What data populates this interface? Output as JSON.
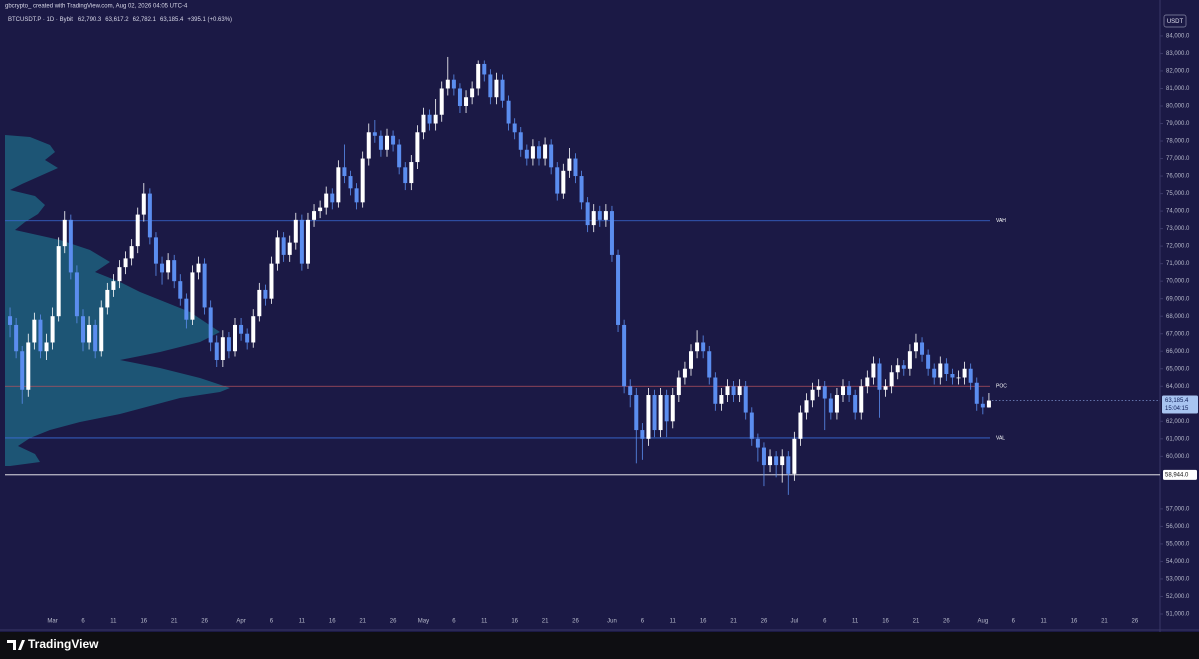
{
  "chart_data": {
    "type": "candlestick",
    "credit": "gbcrypto_ created with TradingView.com, Aug 02, 2026 04:05 UTC-4",
    "header": {
      "symbol": "BTCUSDT.P · 1D · Bybit",
      "open": "62,790.3",
      "high": "63,617.2",
      "low": "62,782.1",
      "close": "63,185.4",
      "change": "+395.1 (+0.63%)"
    },
    "currency": "USDT",
    "brand": "TradingView",
    "up_color": "#ffffff",
    "down_color": "#5b8def",
    "categories": [
      null,
      null,
      null,
      null,
      null,
      null,
      null,
      "Mar",
      null,
      null,
      null,
      null,
      "6",
      null,
      null,
      null,
      null,
      "11",
      null,
      null,
      null,
      null,
      "16",
      null,
      null,
      null,
      null,
      "21",
      null,
      null,
      null,
      null,
      "26",
      null,
      null,
      null,
      null,
      null,
      "Apr",
      null,
      null,
      null,
      null,
      "6",
      null,
      null,
      null,
      null,
      "11",
      null,
      null,
      null,
      null,
      "16",
      null,
      null,
      null,
      null,
      "21",
      null,
      null,
      null,
      null,
      "26",
      null,
      null,
      null,
      null,
      "May",
      null,
      null,
      null,
      null,
      "6",
      null,
      null,
      null,
      null,
      "11",
      null,
      null,
      null,
      null,
      "16",
      null,
      null,
      null,
      null,
      "21",
      null,
      null,
      null,
      null,
      "26",
      null,
      null,
      null,
      null,
      null,
      "Jun",
      null,
      null,
      null,
      null,
      "6",
      null,
      null,
      null,
      null,
      "11",
      null,
      null,
      null,
      null,
      "16",
      null,
      null,
      null,
      null,
      "21",
      null,
      null,
      null,
      null,
      "26",
      null,
      null,
      null,
      null,
      "Jul",
      null,
      null,
      null,
      null,
      "6",
      null,
      null,
      null,
      null,
      "11",
      null,
      null,
      null,
      null,
      "16",
      null,
      null,
      null,
      null,
      "21",
      null,
      null,
      null,
      null,
      "26",
      null,
      null,
      null,
      null,
      null,
      "Aug",
      null,
      null,
      null,
      null,
      "6",
      null,
      null,
      null,
      null,
      "11",
      null,
      null,
      null,
      null,
      "16",
      null,
      null,
      null,
      null,
      "21",
      null,
      null,
      null,
      null,
      "26",
      null,
      null,
      null
    ],
    "open": [
      68000,
      67500,
      66000,
      63800,
      66500,
      67800,
      66000,
      66500,
      68000,
      72000,
      73500,
      70500,
      68000,
      66500,
      67500,
      66000,
      68500,
      69500,
      70000,
      70800,
      71300,
      72000,
      73800,
      75000,
      72500,
      71000,
      70500,
      71200,
      70000,
      69000,
      67800,
      70500,
      71000,
      68500,
      66500,
      65500,
      66800,
      66000,
      67500,
      67000,
      66500,
      68000,
      69500,
      69000,
      71000,
      72500,
      71500,
      72200,
      73500,
      71000,
      73500,
      74000,
      74200,
      75000,
      74500,
      76500,
      76000,
      75300,
      74500,
      77000,
      78500,
      78300,
      77500,
      78300,
      77800,
      76500,
      75600,
      76800,
      78500,
      79500,
      79000,
      79500,
      81000,
      81500,
      81000,
      80000,
      80500,
      81000,
      82400,
      81800,
      80500,
      81500,
      80300,
      79000,
      78500,
      77500,
      77000,
      77700,
      77000,
      77800,
      76500,
      75000,
      76300,
      77000,
      76000,
      74500,
      73200,
      74000,
      73500,
      74000,
      71500,
      67500,
      64000,
      63500,
      61500,
      61000,
      63500,
      61500,
      63500,
      62000,
      63500,
      64500,
      65000,
      66000,
      66500,
      66000,
      64500,
      63000,
      63500,
      64000,
      63500,
      64000,
      62500,
      61000,
      60500,
      59500,
      60000,
      59500,
      60000,
      59000,
      61000,
      62500,
      63200,
      63800,
      64000,
      63300,
      62500,
      63500,
      64000,
      63500,
      62500,
      64000,
      64500,
      65300,
      63800,
      64000,
      64800,
      65200,
      65000,
      66000,
      66500,
      65800,
      65000,
      64500,
      65300,
      64700,
      64500,
      64500,
      65000,
      64200,
      63000,
      62790.3,
      null,
      null,
      null,
      null,
      null,
      null,
      null,
      null,
      null,
      null,
      null,
      null,
      null,
      null,
      null,
      null,
      null,
      null,
      null,
      null,
      null,
      null,
      null,
      null,
      null,
      null,
      null
    ],
    "high": [
      68500,
      67900,
      66300,
      67000,
      68200,
      68100,
      67000,
      68500,
      72500,
      74000,
      73800,
      70900,
      68400,
      68000,
      67800,
      68900,
      69900,
      70400,
      71200,
      71700,
      72400,
      74200,
      75600,
      75300,
      72800,
      71400,
      71600,
      71500,
      70400,
      69300,
      70900,
      71400,
      71300,
      68900,
      66900,
      67200,
      67100,
      67900,
      67900,
      67300,
      68400,
      69900,
      69800,
      71400,
      72900,
      72800,
      72600,
      73900,
      73800,
      73900,
      74400,
      74600,
      75400,
      75300,
      76900,
      77800,
      76300,
      75600,
      77400,
      79000,
      79200,
      78600,
      78700,
      78600,
      78100,
      76800,
      77200,
      78900,
      79900,
      79800,
      80400,
      81400,
      82800,
      81800,
      81300,
      80900,
      81400,
      82600,
      82600,
      82100,
      81900,
      81800,
      80600,
      79300,
      78800,
      77800,
      78100,
      78000,
      78200,
      78100,
      76800,
      76700,
      77600,
      77300,
      76300,
      74800,
      74400,
      74300,
      74400,
      74300,
      71800,
      67800,
      64400,
      63900,
      61900,
      63900,
      63800,
      63900,
      63800,
      63900,
      64900,
      65400,
      66400,
      67200,
      66900,
      66300,
      64800,
      63900,
      64400,
      64300,
      64400,
      64300,
      62800,
      61300,
      60800,
      60400,
      60300,
      60400,
      60300,
      61400,
      62900,
      63600,
      64200,
      64400,
      64300,
      63600,
      63900,
      64400,
      64300,
      63800,
      64400,
      64900,
      65700,
      65600,
      64400,
      65200,
      65600,
      65500,
      66400,
      67000,
      66800,
      66100,
      65300,
      65700,
      65600,
      65000,
      64900,
      65400,
      65300,
      64500,
      63400,
      63617.2,
      null,
      null,
      null,
      null,
      null,
      null,
      null,
      null,
      null,
      null,
      null,
      null,
      null,
      null,
      null,
      null,
      null,
      null,
      null,
      null,
      null,
      null,
      null,
      null,
      null,
      null,
      null
    ],
    "low": [
      66800,
      65600,
      63000,
      63400,
      66100,
      65600,
      65500,
      66100,
      67700,
      71600,
      70100,
      67600,
      66000,
      66100,
      65600,
      65700,
      68100,
      69100,
      69600,
      70400,
      70900,
      71600,
      73400,
      72100,
      70300,
      69800,
      70100,
      69600,
      68600,
      67300,
      67500,
      70100,
      68100,
      66000,
      65100,
      65100,
      65600,
      65700,
      66600,
      66100,
      66200,
      67700,
      68600,
      68700,
      70600,
      71100,
      71100,
      71800,
      70600,
      70700,
      73100,
      73600,
      73800,
      74100,
      74200,
      75600,
      74900,
      74100,
      74200,
      76600,
      77900,
      77100,
      77100,
      77400,
      76100,
      75200,
      75200,
      76400,
      78100,
      78600,
      78600,
      79100,
      80600,
      80600,
      79600,
      79600,
      80100,
      80600,
      81400,
      80100,
      80100,
      79900,
      78600,
      78100,
      77100,
      76600,
      76600,
      76600,
      76600,
      76100,
      74600,
      74700,
      75900,
      75600,
      74100,
      72800,
      72800,
      73100,
      73100,
      71100,
      67100,
      63600,
      62800,
      59600,
      59800,
      60600,
      61100,
      61100,
      61100,
      61600,
      63100,
      64100,
      64600,
      65600,
      65600,
      64100,
      62600,
      62600,
      63100,
      63100,
      63100,
      62100,
      60600,
      59700,
      58300,
      59100,
      58800,
      58500,
      57800,
      58600,
      60600,
      62100,
      62800,
      63400,
      61500,
      62100,
      62100,
      63100,
      63100,
      62100,
      62100,
      63600,
      64100,
      62200,
      63400,
      63600,
      64400,
      64600,
      64600,
      65600,
      65400,
      64600,
      64100,
      64100,
      64300,
      64100,
      64100,
      64100,
      63800,
      62600,
      62400,
      62782.1,
      null,
      null,
      null,
      null,
      null,
      null,
      null,
      null,
      null,
      null,
      null,
      null,
      null,
      null,
      null,
      null,
      null,
      null,
      null,
      null,
      null,
      null,
      null,
      null,
      null,
      null,
      null
    ],
    "close": [
      67500,
      66000,
      63800,
      66500,
      67800,
      66000,
      66500,
      68000,
      72000,
      73500,
      70500,
      68000,
      66500,
      67500,
      66000,
      68500,
      69500,
      70000,
      70800,
      71300,
      72000,
      73800,
      75000,
      72500,
      71000,
      70500,
      71200,
      70000,
      69000,
      67800,
      70500,
      71000,
      68500,
      66500,
      65500,
      66800,
      66000,
      67500,
      67000,
      66500,
      68000,
      69500,
      69000,
      71000,
      72500,
      71500,
      72200,
      73500,
      71000,
      73500,
      74000,
      74200,
      75000,
      74500,
      76500,
      76000,
      75300,
      74500,
      77000,
      78500,
      78300,
      77500,
      78300,
      77800,
      76500,
      75600,
      76800,
      78500,
      79500,
      79000,
      79500,
      81000,
      81500,
      81000,
      80000,
      80500,
      81000,
      82400,
      81800,
      80500,
      81500,
      80300,
      79000,
      78500,
      77500,
      77000,
      77700,
      77000,
      77800,
      76500,
      75000,
      76300,
      77000,
      76000,
      74500,
      73200,
      74000,
      73500,
      74000,
      71500,
      67500,
      64000,
      63500,
      61500,
      61000,
      63500,
      61500,
      63500,
      62000,
      63500,
      64500,
      65000,
      66000,
      66500,
      66000,
      64500,
      63000,
      63500,
      64000,
      63500,
      64000,
      62500,
      61000,
      60500,
      59500,
      60000,
      59500,
      60000,
      59000,
      61000,
      62500,
      63200,
      63800,
      64000,
      63300,
      62500,
      63500,
      64000,
      63500,
      62500,
      64000,
      64500,
      65300,
      63800,
      64000,
      64800,
      65200,
      65000,
      66000,
      66500,
      65800,
      65000,
      64500,
      65300,
      64700,
      64500,
      64500,
      65000,
      64200,
      63000,
      62790.3,
      63185.4,
      null,
      null,
      null,
      null,
      null,
      null,
      null,
      null,
      null,
      null,
      null,
      null,
      null,
      null,
      null,
      null,
      null,
      null,
      null,
      null,
      null,
      null,
      null,
      null,
      null,
      null,
      null
    ],
    "last_price": {
      "label": "63,185.4",
      "countdown": "15:04:15"
    },
    "levels": [
      {
        "label": "VAH",
        "value": 73450,
        "color": "#3a6bd8"
      },
      {
        "label": "POC",
        "value": 64000,
        "color": "#b0505e"
      },
      {
        "label": "VAL",
        "value": 61050,
        "color": "#3a6bd8"
      }
    ],
    "price_line": {
      "value": 58944,
      "label": "58,944.0",
      "color": "#ffffff"
    },
    "ylim": [
      50200,
      85480
    ],
    "yticks": [
      {
        "value": 84000,
        "label": "84,000.0"
      },
      {
        "value": 83000,
        "label": "83,000.0"
      },
      {
        "value": 82000,
        "label": "82,000.0"
      },
      {
        "value": 81000,
        "label": "81,000.0"
      },
      {
        "value": 80000,
        "label": "80,000.0"
      },
      {
        "value": 79000,
        "label": "79,000.0"
      },
      {
        "value": 78000,
        "label": "78,000.0"
      },
      {
        "value": 77000,
        "label": "77,000.0"
      },
      {
        "value": 76000,
        "label": "76,000.0"
      },
      {
        "value": 75000,
        "label": "75,000.0"
      },
      {
        "value": 74000,
        "label": "74,000.0"
      },
      {
        "value": 73000,
        "label": "73,000.0"
      },
      {
        "value": 72000,
        "label": "72,000.0"
      },
      {
        "value": 71000,
        "label": "71,000.0"
      },
      {
        "value": 70000,
        "label": "70,000.0"
      },
      {
        "value": 69000,
        "label": "69,000.0"
      },
      {
        "value": 68000,
        "label": "68,000.0"
      },
      {
        "value": 67000,
        "label": "67,000.0"
      },
      {
        "value": 66000,
        "label": "66,000.0"
      },
      {
        "value": 65000,
        "label": "65,000.0"
      },
      {
        "value": 64000,
        "label": "64,000.0"
      },
      {
        "value": 62000,
        "label": "62,000.0"
      },
      {
        "value": 61000,
        "label": "61,000.0"
      },
      {
        "value": 60000,
        "label": "60,000.0"
      },
      {
        "value": 57000,
        "label": "57,000.0"
      },
      {
        "value": 56000,
        "label": "56,000.0"
      },
      {
        "value": 55000,
        "label": "55,000.0"
      },
      {
        "value": 54000,
        "label": "54,000.0"
      },
      {
        "value": 53000,
        "label": "53,000.0"
      },
      {
        "value": 52000,
        "label": "52,000.0"
      },
      {
        "value": 51000,
        "label": "51,000.0"
      }
    ],
    "grid": false
  }
}
